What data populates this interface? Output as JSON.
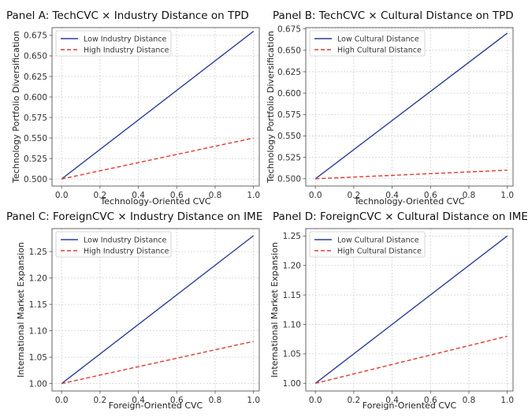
{
  "chart_data": [
    {
      "type": "line",
      "title": "Panel A: TechCVC × Industry Distance on TPD",
      "xlabel": "Technology-Oriented CVC",
      "ylabel": "Technology Portfolio Diversification",
      "xlim": [
        -0.05,
        1.03
      ],
      "ylim": [
        0.4915,
        0.6845
      ],
      "xticks": [
        "0.0",
        "0.2",
        "0.4",
        "0.6",
        "0.8",
        "1.0"
      ],
      "yticks": [
        "0.500",
        "0.525",
        "0.550",
        "0.575",
        "0.600",
        "0.625",
        "0.650",
        "0.675"
      ],
      "legend_position": "upper-left",
      "grid": true,
      "series": [
        {
          "name": "Low Industry Distance",
          "x": [
            0,
            1
          ],
          "y": [
            0.5,
            0.68
          ],
          "color": "#2c3e9a",
          "dash": "solid"
        },
        {
          "name": "High Industry Distance",
          "x": [
            0,
            1
          ],
          "y": [
            0.5,
            0.55
          ],
          "color": "#e03a30",
          "dash": "dashed"
        }
      ]
    },
    {
      "type": "line",
      "title": "Panel B: TechCVC × Cultural Distance on TPD",
      "xlabel": "Technology-Oriented CVC",
      "ylabel": "Technology Portfolio Diversification",
      "xlim": [
        -0.05,
        1.03
      ],
      "ylim": [
        0.4915,
        0.6765
      ],
      "xticks": [
        "0.0",
        "0.2",
        "0.4",
        "0.6",
        "0.8",
        "1.0"
      ],
      "yticks": [
        "0.500",
        "0.525",
        "0.550",
        "0.575",
        "0.600",
        "0.625",
        "0.650",
        "0.675"
      ],
      "legend_position": "upper-left",
      "grid": true,
      "series": [
        {
          "name": "Low Cultural Distance",
          "x": [
            0,
            1
          ],
          "y": [
            0.5,
            0.67
          ],
          "color": "#2c3e9a",
          "dash": "solid"
        },
        {
          "name": "High Cultural Distance",
          "x": [
            0,
            1
          ],
          "y": [
            0.5,
            0.51
          ],
          "color": "#e03a30",
          "dash": "dashed"
        }
      ]
    },
    {
      "type": "line",
      "title": "Panel C: ForeignCVC × Industry Distance on IME",
      "xlabel": "Foreign-Oriented CVC",
      "ylabel": "International Market Expansion",
      "xlim": [
        -0.05,
        1.03
      ],
      "ylim": [
        0.986,
        1.2935
      ],
      "xticks": [
        "0.0",
        "0.2",
        "0.4",
        "0.6",
        "0.8",
        "1.0"
      ],
      "yticks": [
        "1.00",
        "1.05",
        "1.10",
        "1.15",
        "1.20",
        "1.25"
      ],
      "legend_position": "upper-left",
      "grid": true,
      "series": [
        {
          "name": "Low Industry Distance",
          "x": [
            0,
            1
          ],
          "y": [
            1.0,
            1.28
          ],
          "color": "#2c3e9a",
          "dash": "solid"
        },
        {
          "name": "High Industry Distance",
          "x": [
            0,
            1
          ],
          "y": [
            1.0,
            1.08
          ],
          "color": "#e03a30",
          "dash": "dashed"
        }
      ]
    },
    {
      "type": "line",
      "title": "Panel D: ForeignCVC × Cultural Distance on IME",
      "xlabel": "Foreign-Oriented CVC",
      "ylabel": "International Market Expansion",
      "xlim": [
        -0.05,
        1.03
      ],
      "ylim": [
        0.987,
        1.2625
      ],
      "xticks": [
        "0.0",
        "0.2",
        "0.4",
        "0.6",
        "0.8",
        "1.0"
      ],
      "yticks": [
        "1.00",
        "1.05",
        "1.10",
        "1.15",
        "1.20",
        "1.25"
      ],
      "legend_position": "upper-left",
      "grid": true,
      "series": [
        {
          "name": "Low Cultural Distance",
          "x": [
            0,
            1
          ],
          "y": [
            1.0,
            1.25
          ],
          "color": "#2c3e9a",
          "dash": "solid"
        },
        {
          "name": "High Cultural Distance",
          "x": [
            0,
            1
          ],
          "y": [
            1.0,
            1.08
          ],
          "color": "#e03a30",
          "dash": "dashed"
        }
      ]
    }
  ]
}
